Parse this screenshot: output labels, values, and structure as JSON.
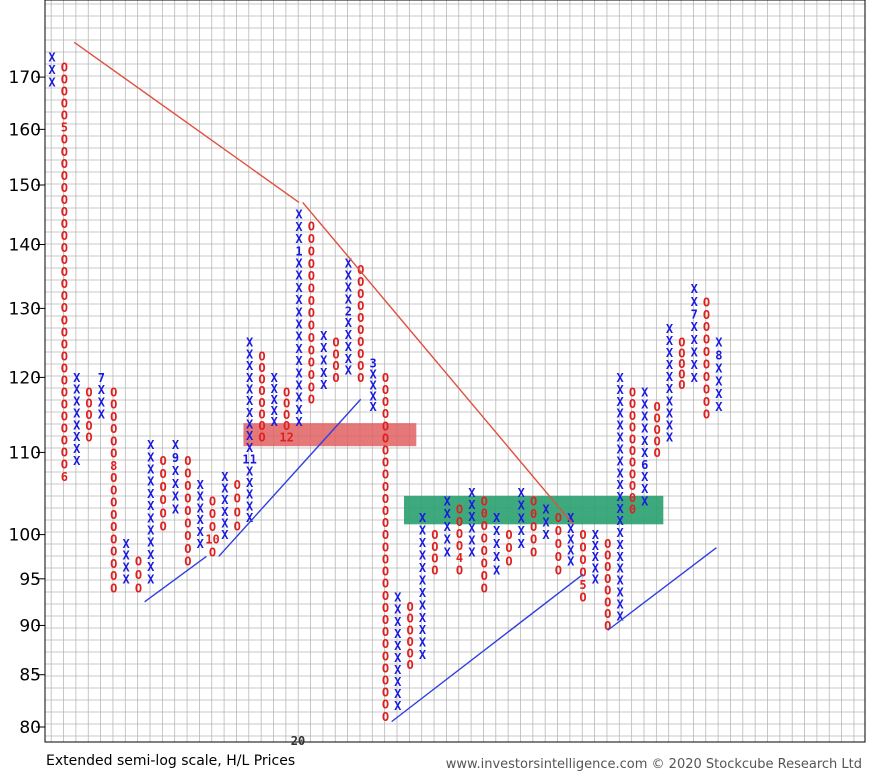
{
  "chart_data": {
    "type": "point-and-figure",
    "footer_left": "Extended semi-log scale, H/L Prices",
    "footer_right": "www.investorsintelligence.com  © 2020 Stockcube Research Ltd",
    "year_marker": "20",
    "y_tick_labels": [
      "80",
      "85",
      "90",
      "95",
      "100",
      "110",
      "120",
      "130",
      "140",
      "150",
      "160",
      "170"
    ],
    "colors": {
      "x": "#1a1adf",
      "o": "#e02020",
      "month": "#1a1adf",
      "month_o": "#e02020",
      "trend_down": "#e05040",
      "trend_up": "#3040e0",
      "resistance": "#e06060",
      "support": "#2aa070",
      "grid": "#b8b8b8"
    },
    "columns": [
      {
        "type": "X",
        "low": 169,
        "high": 174,
        "months": []
      },
      {
        "type": "O",
        "high": 172,
        "low": 107,
        "months": [
          {
            "at": 161,
            "label": "5"
          },
          {
            "at": 107,
            "label": "6"
          }
        ]
      },
      {
        "type": "X",
        "low": 109,
        "high": 120,
        "months": []
      },
      {
        "type": "O",
        "high": 118,
        "low": 112,
        "months": []
      },
      {
        "type": "X",
        "low": 115,
        "high": 120,
        "months": [
          {
            "at": 120,
            "label": "7"
          }
        ]
      },
      {
        "type": "O",
        "high": 118,
        "low": 94,
        "months": [
          {
            "at": 109,
            "label": "8"
          }
        ]
      },
      {
        "type": "X",
        "low": 95,
        "high": 99,
        "months": []
      },
      {
        "type": "O",
        "high": 97,
        "low": 94,
        "months": []
      },
      {
        "type": "X",
        "low": 95,
        "high": 111,
        "months": []
      },
      {
        "type": "O",
        "high": 109,
        "low": 101,
        "months": []
      },
      {
        "type": "X",
        "low": 103,
        "high": 111,
        "months": [
          {
            "at": 109,
            "label": "9"
          }
        ]
      },
      {
        "type": "O",
        "high": 109,
        "low": 97,
        "months": []
      },
      {
        "type": "X",
        "low": 99,
        "high": 106,
        "months": []
      },
      {
        "type": "O",
        "high": 104,
        "low": 98,
        "months": [
          {
            "at": 99,
            "label": "10"
          }
        ]
      },
      {
        "type": "X",
        "low": 100,
        "high": 107,
        "months": []
      },
      {
        "type": "O",
        "high": 106,
        "low": 101,
        "months": []
      },
      {
        "type": "X",
        "low": 102,
        "high": 125,
        "months": [
          {
            "at": 109,
            "label": "11"
          }
        ]
      },
      {
        "type": "O",
        "high": 123,
        "low": 112,
        "months": []
      },
      {
        "type": "X",
        "low": 114,
        "high": 120,
        "months": []
      },
      {
        "type": "O",
        "high": 118,
        "low": 112,
        "months": [
          {
            "at": 112,
            "label": "12"
          }
        ]
      },
      {
        "type": "X",
        "low": 114,
        "high": 145,
        "months": [
          {
            "at": 139,
            "label": "1"
          }
        ]
      },
      {
        "type": "O",
        "high": 143,
        "low": 117,
        "months": []
      },
      {
        "type": "X",
        "low": 119,
        "high": 126,
        "months": []
      },
      {
        "type": "O",
        "high": 125,
        "low": 120,
        "months": []
      },
      {
        "type": "X",
        "low": 121,
        "high": 137,
        "months": [
          {
            "at": 130,
            "label": "2"
          }
        ]
      },
      {
        "type": "O",
        "high": 136,
        "low": 120,
        "months": []
      },
      {
        "type": "X",
        "low": 116,
        "high": 122,
        "months": [
          {
            "at": 122,
            "label": "3"
          }
        ]
      },
      {
        "type": "O",
        "high": 120,
        "low": 81,
        "months": []
      },
      {
        "type": "X",
        "low": 82,
        "high": 93,
        "months": []
      },
      {
        "type": "O",
        "high": 92,
        "low": 86,
        "months": []
      },
      {
        "type": "X",
        "low": 87,
        "high": 102,
        "months": []
      },
      {
        "type": "O",
        "high": 100,
        "low": 96,
        "months": []
      },
      {
        "type": "X",
        "low": 98,
        "high": 104,
        "months": []
      },
      {
        "type": "O",
        "high": 103,
        "low": 96,
        "months": [
          {
            "at": 97,
            "label": "4"
          }
        ]
      },
      {
        "type": "X",
        "low": 98,
        "high": 105,
        "months": []
      },
      {
        "type": "O",
        "high": 104,
        "low": 94,
        "months": [
          {
            "at": 102,
            "label": "0"
          }
        ]
      },
      {
        "type": "X",
        "low": 96,
        "high": 102,
        "months": []
      },
      {
        "type": "O",
        "high": 100,
        "low": 97,
        "months": []
      },
      {
        "type": "X",
        "low": 99,
        "high": 105,
        "months": []
      },
      {
        "type": "O",
        "high": 104,
        "low": 98,
        "months": [
          {
            "at": 102,
            "label": "0"
          }
        ]
      },
      {
        "type": "X",
        "low": 100,
        "high": 103,
        "months": []
      },
      {
        "type": "O",
        "high": 102,
        "low": 96,
        "months": []
      },
      {
        "type": "X",
        "low": 97,
        "high": 102,
        "months": []
      },
      {
        "type": "O",
        "high": 100,
        "low": 93,
        "months": [
          {
            "at": 94,
            "label": "5"
          }
        ]
      },
      {
        "type": "X",
        "low": 95,
        "high": 100,
        "months": []
      },
      {
        "type": "O",
        "high": 99,
        "low": 90,
        "months": []
      },
      {
        "type": "X",
        "low": 91,
        "high": 120,
        "months": []
      },
      {
        "type": "O",
        "high": 118,
        "low": 103,
        "months": [
          {
            "at": 105,
            "label": "0"
          },
          {
            "at": 103,
            "label": "0"
          }
        ]
      },
      {
        "type": "X",
        "low": 104,
        "high": 118,
        "months": [
          {
            "at": 108,
            "label": "6"
          }
        ]
      },
      {
        "type": "O",
        "high": 116,
        "low": 110,
        "months": []
      },
      {
        "type": "X",
        "low": 112,
        "high": 127,
        "months": []
      },
      {
        "type": "O",
        "high": 125,
        "low": 119,
        "months": []
      },
      {
        "type": "X",
        "low": 120,
        "high": 133,
        "months": [
          {
            "at": 130,
            "label": "7"
          }
        ]
      },
      {
        "type": "O",
        "high": 131,
        "low": 115,
        "months": []
      },
      {
        "type": "X",
        "low": 116,
        "high": 125,
        "months": [
          {
            "at": 123,
            "label": "8"
          }
        ]
      }
    ],
    "trend_lines": [
      {
        "kind": "down",
        "from": {
          "col": 1.8,
          "price": 177
        },
        "to": {
          "col": 20,
          "price": 147
        }
      },
      {
        "kind": "down",
        "from": {
          "col": 20.3,
          "price": 147
        },
        "to": {
          "col": 42.2,
          "price": 101.2
        }
      },
      {
        "kind": "up",
        "from": {
          "col": 7.5,
          "price": 92.5
        },
        "to": {
          "col": 12.5,
          "price": 97.5
        }
      },
      {
        "kind": "up",
        "from": {
          "col": 13.5,
          "price": 97.5
        },
        "to": {
          "col": 25,
          "price": 117
        }
      },
      {
        "kind": "up",
        "from": {
          "col": 27.5,
          "price": 80.5
        },
        "to": {
          "col": 43,
          "price": 95.5
        }
      },
      {
        "kind": "up",
        "from": {
          "col": 45,
          "price": 89.5
        },
        "to": {
          "col": 53.8,
          "price": 98.5
        }
      }
    ],
    "zones": [
      {
        "kind": "resistance",
        "from_col": 16,
        "to_col": 29,
        "price_low": 110.8,
        "price_high": 113.8
      },
      {
        "kind": "support",
        "from_col": 29,
        "to_col": 49,
        "price_low": 101.2,
        "price_high": 104.6
      }
    ]
  }
}
